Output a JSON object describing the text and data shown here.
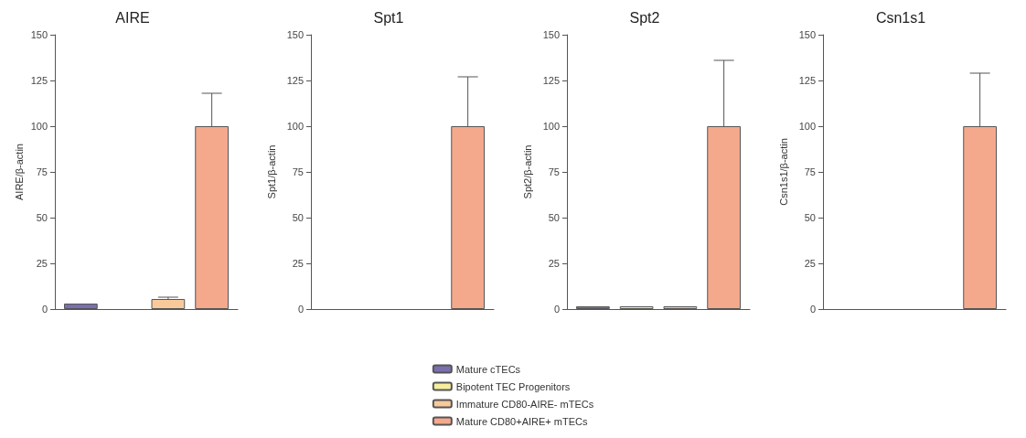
{
  "chart_data": [
    {
      "type": "bar",
      "title": "AIRE",
      "ylabel": "AIRE/β-actin",
      "categories": [
        null
      ],
      "ylim": [
        0,
        150
      ],
      "yticks": [
        0,
        25,
        50,
        75,
        100,
        125,
        150
      ],
      "grid": false,
      "tick_labels": "y",
      "legend": "bottom",
      "series": [
        {
          "name": "Mature cTECs",
          "color": "#7b6fb0",
          "values": [
            3
          ]
        },
        {
          "name": "Bipotent TEC Progenitors",
          "color": "#f7ee9c",
          "values": [
            null
          ]
        },
        {
          "name": "Immature CD80-AIRE- mTECs",
          "color": "#f8c99a",
          "values": [
            5.5
          ],
          "errors": [
            [
              5.5,
              6.5
            ]
          ]
        },
        {
          "name": "Mature CD80+AIRE+ mTECs",
          "color": "#f4a98c",
          "values": [
            100
          ],
          "errors": [
            [
              100,
              118
            ]
          ]
        }
      ]
    },
    {
      "type": "bar",
      "title": "Spt1",
      "ylabel": "Spt1/β-actin",
      "categories": [
        null
      ],
      "ylim": [
        0,
        150
      ],
      "yticks": [
        0,
        25,
        50,
        75,
        100,
        125,
        150
      ],
      "grid": false,
      "tick_labels": "y",
      "series": [
        {
          "color": "#7b6fb0",
          "values": [
            null
          ]
        },
        {
          "color": "#f7ee9c",
          "values": [
            null
          ]
        },
        {
          "color": "#f8c99a",
          "values": [
            null
          ]
        },
        {
          "color": "#f4a98c",
          "values": [
            100
          ],
          "errors": [
            [
              100,
              127
            ]
          ]
        }
      ]
    },
    {
      "type": "bar",
      "title": "Spt2",
      "ylabel": "Spt2/β-actin",
      "categories": [
        null
      ],
      "ylim": [
        0,
        150
      ],
      "yticks": [
        0,
        25,
        50,
        75,
        100,
        125,
        150
      ],
      "grid": false,
      "tick_labels": "y",
      "series": [
        {
          "color": "#7b6fb0",
          "values": [
            1.5
          ]
        },
        {
          "color": "#f7ee9c",
          "values": [
            1.5
          ]
        },
        {
          "color": "#f8c99a",
          "values": [
            1.5
          ]
        },
        {
          "color": "#f4a98c",
          "values": [
            100
          ],
          "errors": [
            [
              100,
              136
            ]
          ]
        }
      ]
    },
    {
      "type": "bar",
      "title": "Csn1s1",
      "ylabel": "Csn1s1/β-actin",
      "categories": [
        null
      ],
      "ylim": [
        0,
        150
      ],
      "yticks": [
        0,
        25,
        50,
        75,
        100,
        125,
        150
      ],
      "grid": false,
      "tick_labels": "y",
      "series": [
        {
          "color": "#7b6fb0",
          "values": [
            null
          ]
        },
        {
          "color": "#f7ee9c",
          "values": [
            null
          ]
        },
        {
          "color": "#f8c99a",
          "values": [
            null
          ]
        },
        {
          "color": "#f4a98c",
          "values": [
            100
          ],
          "errors": [
            [
              100,
              129
            ]
          ]
        }
      ]
    }
  ]
}
